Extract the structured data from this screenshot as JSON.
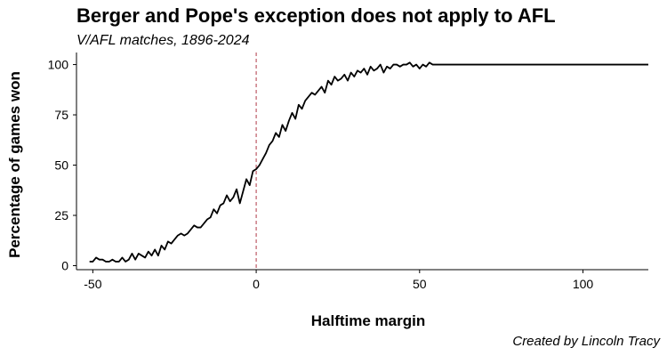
{
  "chart_data": {
    "type": "line",
    "title": "Berger and Pope's exception does not apply to AFL",
    "subtitle": "V/AFL matches, 1896-2024",
    "caption": "Created by Lincoln Tracy",
    "xlabel": "Halftime margin",
    "ylabel": "Percentage of games won",
    "xlim": [
      -55,
      120
    ],
    "ylim": [
      -2,
      106
    ],
    "x_ticks": [
      -50,
      0,
      50,
      100
    ],
    "y_ticks": [
      0,
      25,
      50,
      75,
      100
    ],
    "reference_line": {
      "x": 0,
      "style": "dashed",
      "color": "#b03a48"
    },
    "line_color": "#000000",
    "grid": false,
    "legend": "none",
    "series": [
      {
        "x": [
          -51,
          -50,
          -49,
          -48,
          -47,
          -46,
          -45,
          -44,
          -43,
          -42,
          -41,
          -40,
          -39,
          -38,
          -37,
          -36,
          -35,
          -34,
          -33,
          -32,
          -31,
          -30,
          -29,
          -28,
          -27,
          -26,
          -25,
          -24,
          -23,
          -22,
          -21,
          -20,
          -19,
          -18,
          -17,
          -16,
          -15,
          -14,
          -13,
          -12,
          -11,
          -10,
          -9,
          -8,
          -7,
          -6,
          -5,
          -4,
          -3,
          -2,
          -1,
          0,
          1,
          2,
          3,
          4,
          5,
          6,
          7,
          8,
          9,
          10,
          11,
          12,
          13,
          14,
          15,
          16,
          17,
          18,
          19,
          20,
          21,
          22,
          23,
          24,
          25,
          26,
          27,
          28,
          29,
          30,
          31,
          32,
          33,
          34,
          35,
          36,
          37,
          38,
          39,
          40,
          41,
          42,
          43,
          44,
          45,
          46,
          47,
          48,
          49,
          50,
          51,
          52,
          53,
          54,
          120
        ],
        "y": [
          2,
          2,
          4,
          3,
          3,
          2,
          2,
          3,
          2,
          2,
          4,
          2,
          3,
          6,
          3,
          6,
          5,
          4,
          7,
          5,
          8,
          5,
          10,
          8,
          12,
          11,
          13,
          15,
          16,
          15,
          16,
          18,
          20,
          19,
          19,
          21,
          23,
          24,
          28,
          26,
          30,
          31,
          35,
          32,
          34,
          38,
          31,
          37,
          43,
          40,
          47,
          48,
          50,
          53,
          56,
          60,
          62,
          66,
          64,
          70,
          67,
          72,
          76,
          73,
          80,
          78,
          82,
          84,
          86,
          85,
          87,
          89,
          86,
          92,
          90,
          94,
          92,
          93,
          95,
          92,
          96,
          94,
          97,
          96,
          98,
          95,
          99,
          97,
          98,
          100,
          96,
          99,
          98,
          100,
          100,
          99,
          100,
          100,
          101,
          99,
          100,
          98,
          100,
          99,
          101,
          100,
          100
        ]
      }
    ]
  }
}
